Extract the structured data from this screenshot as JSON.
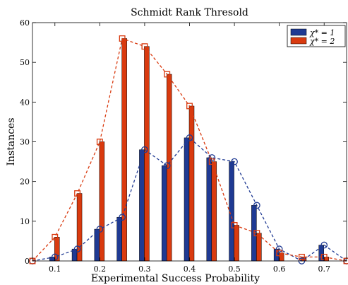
{
  "chart_data": {
    "type": "bar",
    "title": "Schmidt Rank Thresold",
    "xlabel": "Experimental Success Probability",
    "ylabel": "Instances",
    "xlim": [
      0.05,
      0.75
    ],
    "ylim": [
      0,
      60
    ],
    "xticks": [
      "0.1",
      "0.2",
      "0.3",
      "0.4",
      "0.5",
      "0.6",
      "0.7"
    ],
    "xtick_values": [
      0.1,
      0.2,
      0.3,
      0.4,
      0.5,
      0.6,
      0.7
    ],
    "yticks": [
      "0",
      "10",
      "20",
      "30",
      "40",
      "50",
      "60"
    ],
    "ytick_values": [
      0,
      10,
      20,
      30,
      40,
      50,
      60
    ],
    "grid": false,
    "legend_position": "top-right",
    "x": [
      0.05,
      0.1,
      0.15,
      0.2,
      0.25,
      0.3,
      0.35,
      0.4,
      0.45,
      0.5,
      0.55,
      0.6,
      0.65,
      0.7,
      0.75
    ],
    "series": [
      {
        "name": "χ* = 1",
        "color": "#1f3a93",
        "marker": "circle",
        "values": [
          0,
          1,
          3,
          8,
          11,
          28,
          24,
          31,
          26,
          25,
          14,
          3,
          0,
          4,
          0
        ]
      },
      {
        "name": "χ* = 2",
        "color": "#d93a0f",
        "marker": "square",
        "values": [
          0,
          6,
          17,
          30,
          56,
          54,
          47,
          39,
          25,
          9,
          7,
          2,
          1,
          1,
          0
        ]
      }
    ],
    "overlay": "dashed lines with markers through bar tops"
  }
}
